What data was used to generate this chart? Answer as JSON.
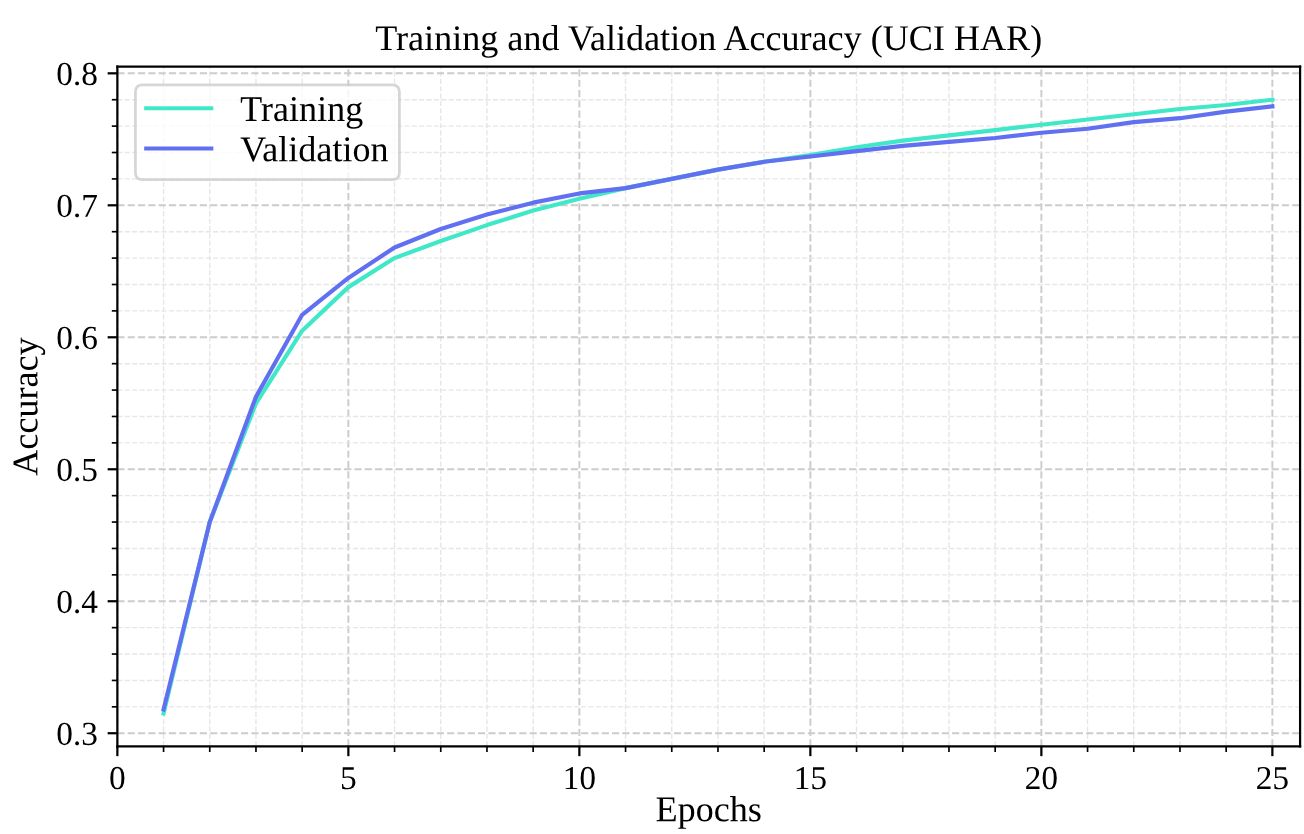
{
  "chart_data": {
    "type": "line",
    "title": "Training and Validation Accuracy (UCI HAR)",
    "xlabel": "Epochs",
    "ylabel": "Accuracy",
    "x": [
      1,
      2,
      3,
      4,
      5,
      6,
      7,
      8,
      9,
      10,
      11,
      12,
      13,
      14,
      15,
      16,
      17,
      18,
      19,
      20,
      21,
      22,
      23,
      24,
      25
    ],
    "series": [
      {
        "name": "Training",
        "color": "#40e8c8",
        "values": [
          0.315,
          0.46,
          0.55,
          0.605,
          0.638,
          0.66,
          0.673,
          0.685,
          0.696,
          0.705,
          0.713,
          0.72,
          0.727,
          0.733,
          0.738,
          0.744,
          0.749,
          0.753,
          0.757,
          0.761,
          0.765,
          0.769,
          0.773,
          0.776,
          0.78
        ]
      },
      {
        "name": "Validation",
        "color": "#6070f0",
        "values": [
          0.318,
          0.46,
          0.555,
          0.617,
          0.645,
          0.668,
          0.682,
          0.693,
          0.702,
          0.709,
          0.713,
          0.72,
          0.727,
          0.733,
          0.737,
          0.741,
          0.745,
          0.748,
          0.751,
          0.755,
          0.758,
          0.763,
          0.766,
          0.771,
          0.775
        ]
      }
    ],
    "xlim": [
      0,
      25.6
    ],
    "xticks": [
      0,
      5,
      10,
      15,
      20,
      25
    ],
    "ylim": [
      0.29,
      0.805
    ],
    "yticks": [
      0.3,
      0.4,
      0.5,
      0.6,
      0.7,
      0.8
    ],
    "grid": true,
    "legend": "top left",
    "marker": "none",
    "line_style": "solid"
  }
}
